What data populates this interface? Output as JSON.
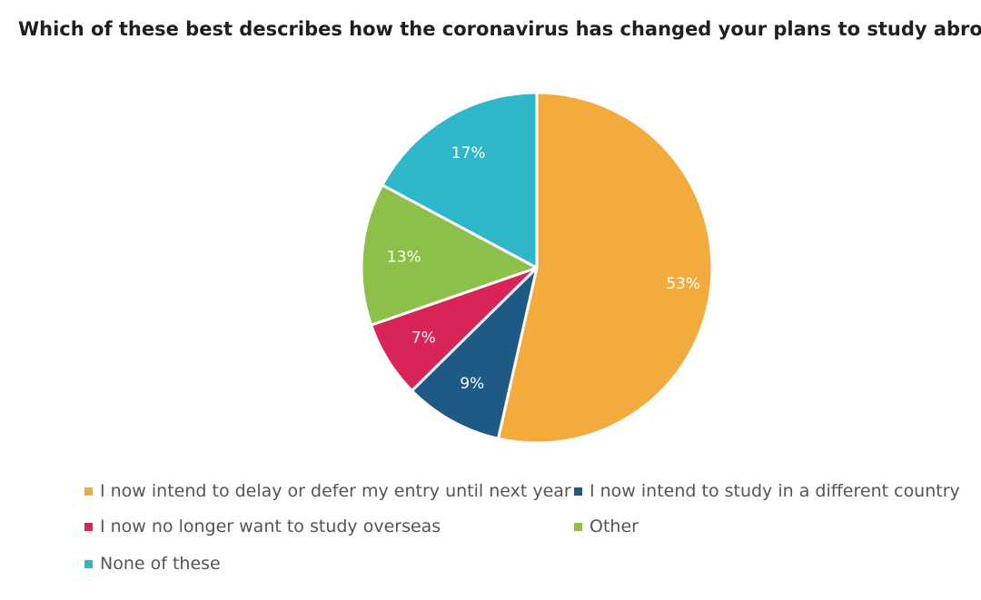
{
  "chart_data": {
    "type": "pie",
    "title": "Which of these best describes how the coronavirus has changed your plans to study abroad?",
    "slices": [
      {
        "label": "I now intend to delay or defer my entry until next year",
        "value": 53,
        "display": "53%",
        "color": "#f2ab3c"
      },
      {
        "label": "I now intend to study in a different country",
        "value": 9,
        "display": "9%",
        "color": "#1f5a86"
      },
      {
        "label": "I now no longer want to study overseas",
        "value": 7,
        "display": "7%",
        "color": "#d92458"
      },
      {
        "label": "Other",
        "value": 13,
        "display": "13%",
        "color": "#8cc04a"
      },
      {
        "label": "None of these",
        "value": 17,
        "display": "17%",
        "color": "#2eb7c9"
      }
    ],
    "legend_position": "bottom"
  }
}
